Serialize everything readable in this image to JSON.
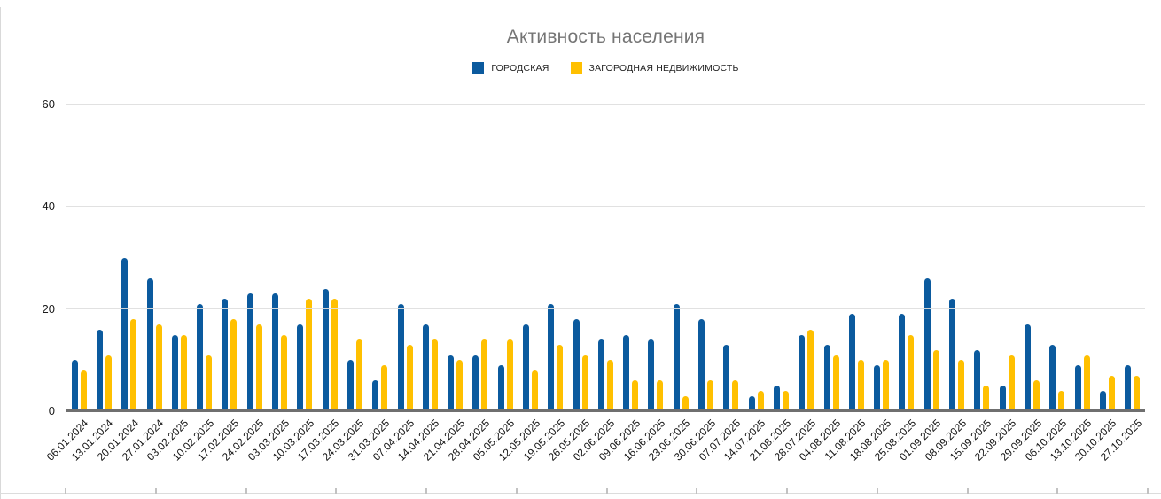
{
  "chart_data": {
    "type": "bar",
    "title": "Активность населения",
    "xlabel": "",
    "ylabel": "",
    "ylim": [
      0,
      60
    ],
    "yticks": [
      0,
      20,
      40,
      60
    ],
    "grid": true,
    "legend_position": "top",
    "categories": [
      "06.01.2024",
      "13.01.2024",
      "20.01.2024",
      "27.01.2024",
      "03.02.2025",
      "10.02.2025",
      "17.02.2025",
      "24.02.2025",
      "03.03.2025",
      "10.03.2025",
      "17.03.2025",
      "24.03.2025",
      "31.03.2025",
      "07.04.2025",
      "14.04.2025",
      "21.04.2025",
      "28.04.2025",
      "05.05.2025",
      "12.05.2025",
      "19.05.2025",
      "26.05.2025",
      "02.06.2025",
      "09.06.2025",
      "16.06.2025",
      "23.06.2025",
      "30.06.2025",
      "07.07.2025",
      "14.07.2025",
      "21.08.2025",
      "28.07.2025",
      "04.08.2025",
      "11.08.2025",
      "18.08.2025",
      "25.08.2025",
      "01.09.2025",
      "08.09.2025",
      "15.09.2025",
      "22.09.2025",
      "29.09.2025",
      "06.10.2025",
      "13.10.2025",
      "20.10.2025",
      "27.10.2025"
    ],
    "series": [
      {
        "name": "ГОРОДСКАЯ",
        "color": "#0b5a9e",
        "values": [
          10,
          16,
          30,
          26,
          15,
          21,
          22,
          23,
          23,
          17,
          24,
          10,
          6,
          21,
          17,
          11,
          11,
          9,
          17,
          21,
          18,
          14,
          15,
          14,
          21,
          18,
          13,
          3,
          5,
          15,
          13,
          19,
          9,
          19,
          26,
          22,
          12,
          5,
          17,
          13,
          9,
          4,
          9
        ]
      },
      {
        "name": "ЗАГОРОДНАЯ НЕДВИЖИМОСТЬ",
        "color": "#ffc000",
        "values": [
          8,
          11,
          18,
          17,
          15,
          11,
          18,
          17,
          15,
          22,
          22,
          14,
          9,
          13,
          14,
          10,
          14,
          14,
          8,
          13,
          11,
          10,
          6,
          6,
          3,
          6,
          6,
          4,
          4,
          16,
          11,
          10,
          10,
          15,
          12,
          10,
          5,
          11,
          6,
          4,
          11,
          7,
          7
        ]
      }
    ]
  }
}
